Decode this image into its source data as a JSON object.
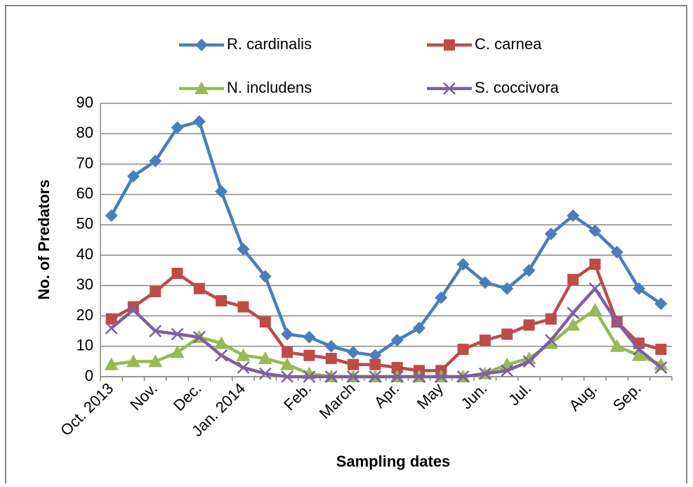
{
  "chart_data": {
    "type": "line",
    "x_label": "Sampling dates",
    "y_label": "No. of Predators",
    "categories": [
      "Oct. 2013",
      null,
      "Nov.",
      null,
      "Dec.",
      null,
      "Jan. 2014",
      null,
      null,
      "Feb.",
      null,
      "March",
      null,
      "Apr.",
      null,
      "May",
      null,
      "Jun.",
      null,
      "Jul.",
      null,
      null,
      "Aug.",
      null,
      "Sep.",
      null
    ],
    "series": [
      {
        "name": "R. cardinalis",
        "color": "#4a7ebb",
        "marker": "diamond",
        "values": [
          53,
          66,
          71,
          82,
          84,
          61,
          42,
          33,
          14,
          13,
          10,
          8,
          7,
          12,
          16,
          26,
          37,
          31,
          29,
          35,
          47,
          53,
          48,
          41,
          29,
          24
        ]
      },
      {
        "name": "C. carnea",
        "color": "#be4b48",
        "marker": "square",
        "values": [
          19,
          23,
          28,
          34,
          29,
          25,
          23,
          18,
          8,
          7,
          6,
          4,
          4,
          3,
          2,
          2,
          9,
          12,
          14,
          17,
          19,
          32,
          37,
          18,
          11,
          9
        ]
      },
      {
        "name": "N. includens",
        "color": "#98b954",
        "marker": "triangle",
        "values": [
          4,
          5,
          5,
          8,
          13,
          11,
          7,
          6,
          4,
          1,
          0,
          0,
          0,
          0,
          0,
          0,
          0,
          1,
          4,
          6,
          11,
          17,
          22,
          10,
          7,
          4
        ]
      },
      {
        "name": "S. coccivora",
        "color": "#7d60a0",
        "marker": "x",
        "values": [
          16,
          22,
          15,
          14,
          13,
          7,
          3,
          1,
          0,
          0,
          0,
          0,
          0,
          0,
          0,
          0,
          0,
          1,
          2,
          5,
          12,
          21,
          29,
          18,
          9,
          3
        ]
      }
    ],
    "ylim": [
      0,
      90
    ],
    "yticks": [
      0,
      10,
      20,
      30,
      40,
      50,
      60,
      70,
      80,
      90
    ],
    "grid": true
  }
}
